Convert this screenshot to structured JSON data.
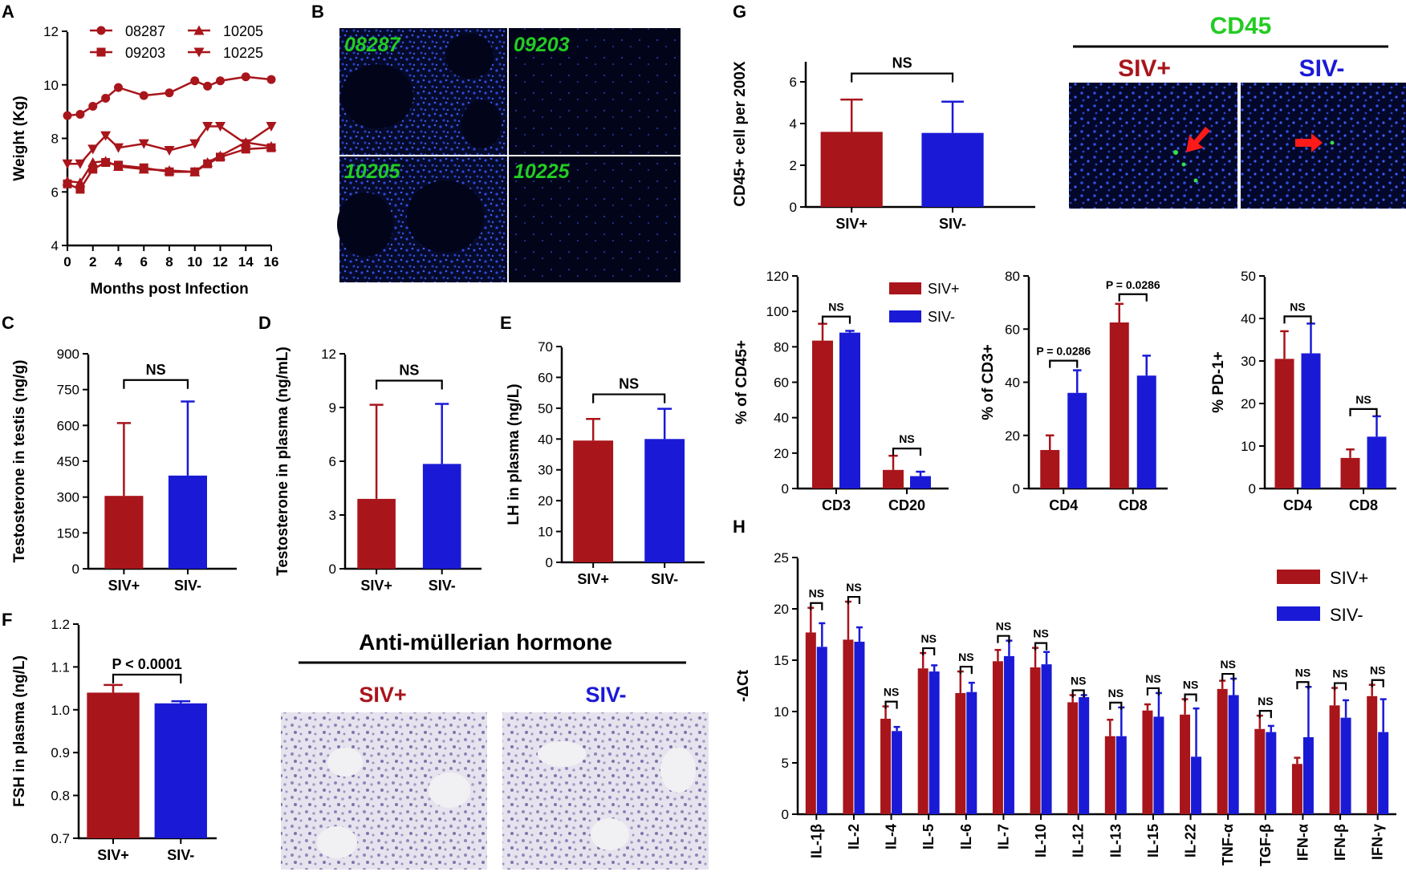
{
  "colors": {
    "siv_pos": "#a8151b",
    "siv_neg": "#1a1ad6",
    "axis": "#000000",
    "cd45": "#22cc22"
  },
  "labels": {
    "A": "A",
    "B": "B",
    "C": "C",
    "D": "D",
    "E": "E",
    "F": "F",
    "G": "G",
    "H": "H"
  },
  "chart_data": [
    {
      "id": "A",
      "type": "line",
      "x": [
        0,
        1,
        2,
        3,
        4,
        6,
        8,
        10,
        11,
        12,
        14,
        16
      ],
      "series": [
        {
          "name": "08287",
          "marker": "circle",
          "values": [
            8.85,
            8.9,
            9.2,
            9.5,
            9.9,
            9.6,
            9.7,
            10.15,
            9.95,
            10.15,
            10.3,
            10.2
          ]
        },
        {
          "name": "09203",
          "marker": "square",
          "values": [
            6.3,
            6.1,
            6.85,
            7.1,
            7.0,
            6.9,
            6.75,
            6.75,
            7.05,
            7.3,
            7.6,
            7.65
          ]
        },
        {
          "name": "10205",
          "marker": "triangle",
          "values": [
            6.4,
            6.35,
            7.1,
            7.15,
            6.95,
            6.85,
            6.8,
            6.75,
            7.1,
            7.35,
            7.85,
            7.7
          ]
        },
        {
          "name": "10225",
          "marker": "tri-down",
          "values": [
            7.05,
            7.05,
            7.6,
            8.1,
            7.65,
            7.8,
            7.55,
            7.8,
            8.45,
            8.45,
            7.8,
            8.45
          ]
        }
      ],
      "xlabel": "Months post Infection",
      "ylabel": "Weight (Kg)",
      "ylim": [
        4,
        12
      ],
      "yticks": [
        "4",
        "6",
        "8",
        "10",
        "12"
      ],
      "xticks": [
        "0",
        "2",
        "4",
        "6",
        "8",
        "10",
        "12",
        "14",
        "16"
      ]
    },
    {
      "id": "C",
      "type": "bar",
      "categories": [
        "SIV+",
        "SIV-"
      ],
      "values": [
        305,
        390
      ],
      "errors": [
        305,
        310
      ],
      "ylabel": "Testosterone in testis (ng/g)",
      "ylim": [
        0,
        900
      ],
      "yticks": [
        "0",
        "150",
        "300",
        "450",
        "600",
        "750",
        "900"
      ],
      "sig": "NS"
    },
    {
      "id": "D",
      "type": "bar",
      "categories": [
        "SIV+",
        "SIV-"
      ],
      "values": [
        3.9,
        5.85
      ],
      "errors": [
        5.25,
        3.35
      ],
      "ylabel": "Testosterone in plasma (ng/mL)",
      "ylim": [
        0,
        12
      ],
      "yticks": [
        "0",
        "3",
        "6",
        "9",
        "12"
      ],
      "sig": "NS"
    },
    {
      "id": "E",
      "type": "bar",
      "categories": [
        "SIV+",
        "SIV-"
      ],
      "values": [
        39.5,
        40
      ],
      "errors": [
        7,
        9.8
      ],
      "ylabel": "LH in plasma (ng/L)",
      "ylim": [
        0,
        70
      ],
      "yticks": [
        "0",
        "10",
        "20",
        "30",
        "40",
        "50",
        "60",
        "70"
      ],
      "sig": "NS"
    },
    {
      "id": "F",
      "type": "bar",
      "categories": [
        "SIV+",
        "SIV-"
      ],
      "values": [
        1.04,
        1.015
      ],
      "errors": [
        0.018,
        0.005
      ],
      "ylabel": "FSH in plasma (ng/L)",
      "ylim": [
        0.7,
        1.2
      ],
      "yticks": [
        "0.7",
        "0.8",
        "0.9",
        "1.0",
        "1.1",
        "1.2"
      ],
      "sig": "P < 0.0001"
    },
    {
      "id": "G1",
      "type": "bar",
      "categories": [
        "SIV+",
        "SIV-"
      ],
      "values": [
        3.6,
        3.55
      ],
      "errors": [
        1.55,
        1.5
      ],
      "ylabel": "CD45+ cell per 200X",
      "ylim": [
        0,
        7
      ],
      "yticks": [
        "0",
        "2",
        "4",
        "6"
      ],
      "sig": "NS"
    },
    {
      "id": "G2",
      "type": "bar",
      "categories": [
        "CD3",
        "CD20"
      ],
      "series": [
        {
          "name": "SIV+",
          "values": [
            83.5,
            10.5
          ],
          "errors": [
            9.5,
            8
          ]
        },
        {
          "name": "SIV-",
          "values": [
            88,
            7
          ],
          "errors": [
            1,
            2.5
          ]
        }
      ],
      "ylabel": "% of CD45+",
      "ylim": [
        0,
        120
      ],
      "yticks": [
        "0",
        "20",
        "40",
        "60",
        "80",
        "100",
        "120"
      ],
      "sig": [
        "NS",
        "NS"
      ]
    },
    {
      "id": "G3",
      "type": "bar",
      "categories": [
        "CD4",
        "CD8"
      ],
      "series": [
        {
          "name": "SIV+",
          "values": [
            14.5,
            62.5
          ],
          "errors": [
            5.5,
            7
          ]
        },
        {
          "name": "SIV-",
          "values": [
            36,
            42.5
          ],
          "errors": [
            8.5,
            7.5
          ]
        }
      ],
      "ylabel": "% of CD3+",
      "ylim": [
        0,
        80
      ],
      "yticks": [
        "0",
        "20",
        "40",
        "60",
        "80"
      ],
      "sig": [
        "P = 0.0286",
        "P = 0.0286"
      ]
    },
    {
      "id": "G4",
      "type": "bar",
      "categories": [
        "CD4",
        "CD8"
      ],
      "series": [
        {
          "name": "SIV+",
          "values": [
            30.5,
            7.2
          ],
          "errors": [
            6.5,
            2
          ]
        },
        {
          "name": "SIV-",
          "values": [
            31.8,
            12.2
          ],
          "errors": [
            7,
            4.8
          ]
        }
      ],
      "ylabel": "% PD-1+",
      "ylim": [
        0,
        50
      ],
      "yticks": [
        "0",
        "10",
        "20",
        "30",
        "40",
        "50"
      ],
      "sig": [
        "NS",
        "NS"
      ]
    },
    {
      "id": "H",
      "type": "bar",
      "categories": [
        "IL-1β",
        "IL-2",
        "IL-4",
        "IL-5",
        "IL-6",
        "IL-7",
        "IL-10",
        "IL-12",
        "IL-13",
        "IL-15",
        "IL-22",
        "TNF-α",
        "TGF-β",
        "IFN-α",
        "IFN-β",
        "IFN-γ"
      ],
      "series": [
        {
          "name": "SIV+",
          "values": [
            17.7,
            17.0,
            9.3,
            14.2,
            11.8,
            14.9,
            14.3,
            10.9,
            7.6,
            10.1,
            9.7,
            12.2,
            8.3,
            4.9,
            10.6,
            11.5
          ],
          "errors": [
            2.4,
            3.7,
            1.2,
            1.5,
            2.1,
            1.1,
            1.9,
            0.7,
            1.6,
            0.6,
            1.5,
            0.8,
            1.3,
            0.6,
            1.7,
            1.1
          ]
        },
        {
          "name": "SIV-",
          "values": [
            16.3,
            16.8,
            8.1,
            13.9,
            11.9,
            15.4,
            14.6,
            11.4,
            7.6,
            9.5,
            5.6,
            11.6,
            8.0,
            7.5,
            9.4,
            8.0
          ],
          "errors": [
            2.3,
            1.4,
            0.4,
            0.6,
            0.9,
            1.5,
            1.2,
            0.2,
            2.8,
            2.3,
            4.7,
            1.6,
            0.6,
            4.9,
            1.7,
            3.2
          ]
        }
      ],
      "ylabel": "-ΔCt",
      "ylim": [
        0,
        25
      ],
      "yticks": [
        "0",
        "5",
        "10",
        "15",
        "20",
        "25"
      ],
      "sig": [
        "NS",
        "NS",
        "NS",
        "NS",
        "NS",
        "NS",
        "NS",
        "NS",
        "NS",
        "NS",
        "NS",
        "NS",
        "NS",
        "NS",
        "NS",
        "NS"
      ]
    }
  ],
  "panelB": {
    "ids": [
      "08287",
      "09203",
      "10205",
      "10225"
    ]
  },
  "panelF_micro": {
    "title": "Anti-müllerian hormone",
    "left": "SIV+",
    "right": "SIV-"
  },
  "panelG_micro": {
    "title": "CD45",
    "left": "SIV+",
    "right": "SIV-"
  },
  "legend_g": {
    "pos": "SIV+",
    "neg": "SIV-"
  },
  "legend_h": {
    "pos": "SIV+",
    "neg": "SIV-"
  }
}
